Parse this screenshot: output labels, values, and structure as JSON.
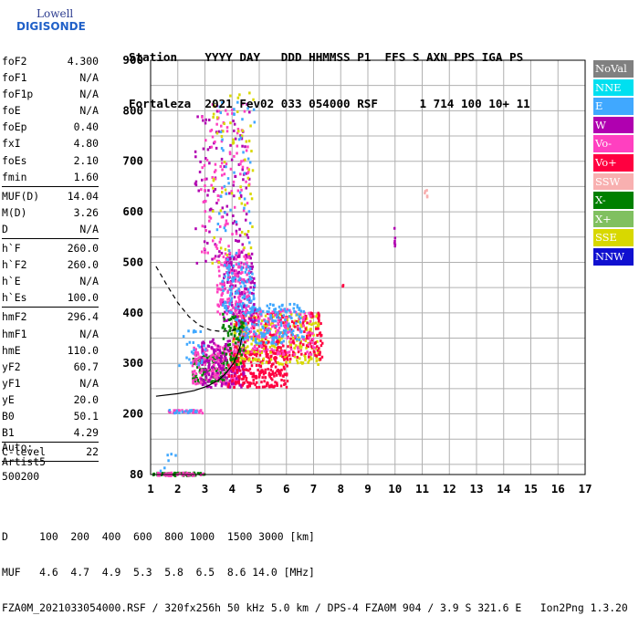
{
  "logo": {
    "line1": "Lowell",
    "line2": "DIGISONDE"
  },
  "header": {
    "line1": "Station    YYYY DAY   DDD HHMMSS P1  FFS S AXN PPS IGA PS",
    "line2": "Fortaleza  2021 Fev02 033 054000 RSF      1 714 100 10+ 11"
  },
  "params": {
    "group1": [
      {
        "label": "foF2",
        "value": "4.300"
      },
      {
        "label": "foF1",
        "value": "N/A"
      },
      {
        "label": "foF1p",
        "value": "N/A"
      },
      {
        "label": "foE",
        "value": "N/A"
      },
      {
        "label": "foEp",
        "value": "0.40"
      },
      {
        "label": "fxI",
        "value": "4.80"
      },
      {
        "label": "foEs",
        "value": "2.10"
      },
      {
        "label": "fmin",
        "value": "1.60"
      }
    ],
    "group2": [
      {
        "label": "MUF(D)",
        "value": "14.04"
      },
      {
        "label": "M(D)",
        "value": "3.26"
      },
      {
        "label": "D",
        "value": "N/A"
      }
    ],
    "group3": [
      {
        "label": "h`F",
        "value": "260.0"
      },
      {
        "label": "h`F2",
        "value": "260.0"
      },
      {
        "label": "h`E",
        "value": "N/A"
      },
      {
        "label": "h`Es",
        "value": "100.0"
      }
    ],
    "group4": [
      {
        "label": "hmF2",
        "value": "296.4"
      },
      {
        "label": "hmF1",
        "value": "N/A"
      },
      {
        "label": "hmE",
        "value": "110.0"
      },
      {
        "label": "yF2",
        "value": "60.7"
      },
      {
        "label": "yF1",
        "value": "N/A"
      },
      {
        "label": "yE",
        "value": "20.0"
      },
      {
        "label": "B0",
        "value": "50.1"
      },
      {
        "label": "B1",
        "value": "4.29"
      }
    ],
    "group5": [
      {
        "label": "C-level",
        "value": "22"
      }
    ]
  },
  "auto": {
    "line1": "Auto:",
    "line2": "Artist5",
    "line3": "500200"
  },
  "footer": {
    "line1": "D     100  200  400  600  800 1000  1500 3000 [km]",
    "line2": "MUF   4.6  4.7  4.9  5.3  5.8  6.5  8.6 14.0 [MHz]",
    "line3": "FZA0M_2021033054000.RSF / 320fx256h 50 kHz 5.0 km / DPS-4 FZA0M 904 / 3.9 S 321.6 E   Ion2Png 1.3.20"
  },
  "legend": [
    {
      "label": "NoVal",
      "color": "#808080"
    },
    {
      "label": "NNE",
      "color": "#00e0f0"
    },
    {
      "label": "E",
      "color": "#40a8ff"
    },
    {
      "label": "W",
      "color": "#b000b0"
    },
    {
      "label": "Vo-",
      "color": "#ff40c0"
    },
    {
      "label": "Vo+",
      "color": "#ff0040"
    },
    {
      "label": "SSW",
      "color": "#f8b0b0"
    },
    {
      "label": "X-",
      "color": "#008000"
    },
    {
      "label": "X+",
      "color": "#80c060"
    },
    {
      "label": "SSE",
      "color": "#d8d800"
    },
    {
      "label": "NNW",
      "color": "#1010d0"
    }
  ],
  "chart_data": {
    "type": "scatter",
    "xlim": [
      1,
      17
    ],
    "ylim": [
      80,
      900
    ],
    "x_ticks": [
      "1",
      "2",
      "3",
      "4",
      "5",
      "6",
      "7",
      "8",
      "9",
      "10",
      "11",
      "12",
      "13",
      "14",
      "15",
      "16",
      "17"
    ],
    "y_ticks": [
      "80",
      "200",
      "300",
      "400",
      "500",
      "600",
      "700",
      "800",
      "900"
    ],
    "y_tick_values": [
      80,
      200,
      300,
      400,
      500,
      600,
      700,
      800,
      900
    ],
    "grid": true,
    "profile_solid": [
      [
        1.2,
        235
      ],
      [
        2.0,
        240
      ],
      [
        2.6,
        246
      ],
      [
        3.1,
        255
      ],
      [
        3.5,
        267
      ],
      [
        3.8,
        282
      ],
      [
        4.05,
        300
      ],
      [
        4.2,
        318
      ],
      [
        4.3,
        335
      ],
      [
        4.35,
        350
      ]
    ],
    "profile_dashed": [
      [
        1.2,
        492
      ],
      [
        1.6,
        455
      ],
      [
        2.0,
        420
      ],
      [
        2.4,
        393
      ],
      [
        2.8,
        375
      ],
      [
        3.2,
        366
      ],
      [
        3.6,
        363
      ],
      [
        4.0,
        365
      ],
      [
        4.3,
        372
      ]
    ],
    "clusters": [
      {
        "x": [
          1.05,
          2.95
        ],
        "y": [
          80,
          86
        ],
        "color": "#008000",
        "n": 60
      },
      {
        "x": [
          1.05,
          2.95
        ],
        "y": [
          80,
          86
        ],
        "color": "#ff40c0",
        "n": 40
      },
      {
        "x": [
          1.6,
          2.9
        ],
        "y": [
          204,
          210
        ],
        "color": "#ff40c0",
        "n": 35
      },
      {
        "x": [
          1.6,
          2.9
        ],
        "y": [
          204,
          210
        ],
        "color": "#40a8ff",
        "n": 15
      },
      {
        "x": [
          1.3,
          1.9
        ],
        "y": [
          80,
          140
        ],
        "color": "#40a8ff",
        "n": 6
      },
      {
        "x": [
          2.5,
          3.8
        ],
        "y": [
          265,
          320
        ],
        "color": "#008000",
        "n": 120
      },
      {
        "x": [
          2.5,
          4.2
        ],
        "y": [
          260,
          340
        ],
        "color": "#ff40c0",
        "n": 220
      },
      {
        "x": [
          2.8,
          4.5
        ],
        "y": [
          255,
          350
        ],
        "color": "#b000b0",
        "n": 160
      },
      {
        "x": [
          3.8,
          6.0
        ],
        "y": [
          255,
          330
        ],
        "color": "#ff0040",
        "n": 260
      },
      {
        "x": [
          4.0,
          7.2
        ],
        "y": [
          300,
          400
        ],
        "color": "#d8d800",
        "n": 260
      },
      {
        "x": [
          4.0,
          7.3
        ],
        "y": [
          310,
          405
        ],
        "color": "#ff0040",
        "n": 200
      },
      {
        "x": [
          4.2,
          7.0
        ],
        "y": [
          320,
          410
        ],
        "color": "#ff40c0",
        "n": 160
      },
      {
        "x": [
          4.0,
          6.6
        ],
        "y": [
          340,
          420
        ],
        "color": "#40a8ff",
        "n": 180
      },
      {
        "x": [
          3.6,
          4.8
        ],
        "y": [
          380,
          520
        ],
        "color": "#b000b0",
        "n": 140
      },
      {
        "x": [
          3.4,
          4.6
        ],
        "y": [
          400,
          520
        ],
        "color": "#ff40c0",
        "n": 130
      },
      {
        "x": [
          3.6,
          4.8
        ],
        "y": [
          400,
          500
        ],
        "color": "#40a8ff",
        "n": 90
      },
      {
        "x": [
          2.6,
          4.6
        ],
        "y": [
          500,
          820
        ],
        "color": "#b000b0",
        "n": 110
      },
      {
        "x": [
          2.8,
          4.6
        ],
        "y": [
          500,
          820
        ],
        "color": "#ff40c0",
        "n": 110
      },
      {
        "x": [
          3.2,
          4.8
        ],
        "y": [
          500,
          860
        ],
        "color": "#d8d800",
        "n": 60
      },
      {
        "x": [
          3.4,
          4.8
        ],
        "y": [
          480,
          820
        ],
        "color": "#40a8ff",
        "n": 50
      },
      {
        "x": [
          2.0,
          3.0
        ],
        "y": [
          295,
          370
        ],
        "color": "#40a8ff",
        "n": 25
      },
      {
        "x": [
          3.6,
          4.4
        ],
        "y": [
          300,
          400
        ],
        "color": "#008000",
        "n": 60
      },
      {
        "x": [
          9.9,
          10.0
        ],
        "y": [
          530,
          570
        ],
        "color": "#b000b0",
        "n": 6
      },
      {
        "x": [
          11.05,
          11.15
        ],
        "y": [
          630,
          648
        ],
        "color": "#f8b0b0",
        "n": 5
      },
      {
        "x": [
          8.0,
          8.1
        ],
        "y": [
          450,
          460
        ],
        "color": "#ff0040",
        "n": 2
      }
    ]
  }
}
